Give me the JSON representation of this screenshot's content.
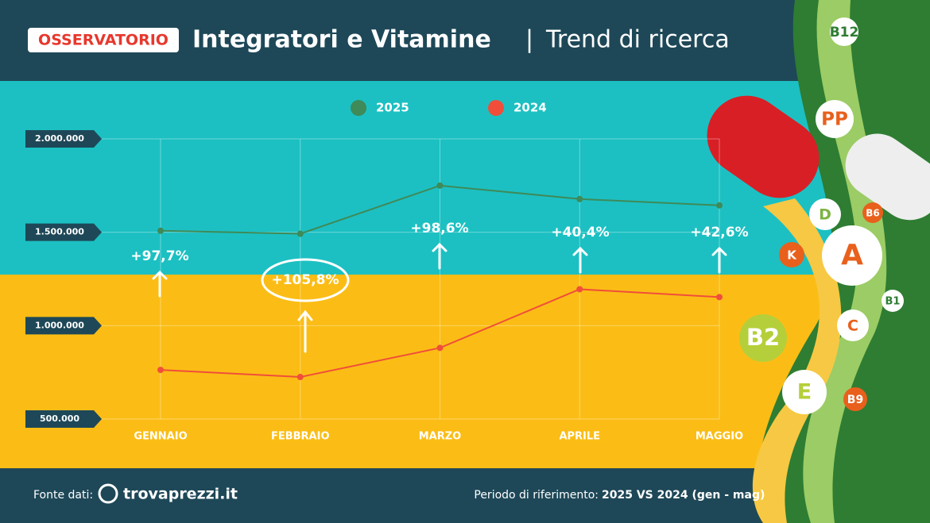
{
  "badge": "OSSERVATORIO",
  "title": "Integratori e Vitamine",
  "separator": "|",
  "subtitle": "Trend di ricerca",
  "chart_data": {
    "type": "line",
    "categories": [
      "GENNAIO",
      "FEBBRAIO",
      "MARZO",
      "APRILE",
      "MAGGIO"
    ],
    "series": [
      {
        "name": "2025",
        "color": "#3e8a58",
        "values": [
          1508000,
          1492000,
          1750000,
          1678000,
          1644000
        ]
      },
      {
        "name": "2024",
        "color": "#f04e3a",
        "values": [
          763000,
          725000,
          881000,
          1195000,
          1153000
        ]
      }
    ],
    "annotations": [
      "+97,7%",
      "+105,8%",
      "+98,6%",
      "+40,4%",
      "+42,6%"
    ],
    "ylim": [
      500000,
      2000000
    ],
    "yticks": [
      {
        "value": 500000,
        "label": "500.000"
      },
      {
        "value": 1000000,
        "label": "1.000.000"
      },
      {
        "value": 1500000,
        "label": "1.500.000"
      },
      {
        "value": 2000000,
        "label": "2.000.000"
      }
    ],
    "grid": true
  },
  "vitamins": [
    "B12",
    "PP",
    "D",
    "B6",
    "K",
    "A",
    "B1",
    "B2",
    "C",
    "E",
    "B9"
  ],
  "footer": {
    "source_label": "Fonte dati:",
    "source": "trovaprezzi.it",
    "period_label": "Periodo di riferimento:",
    "period": "2025 VS 2024 (gen - mag)"
  }
}
